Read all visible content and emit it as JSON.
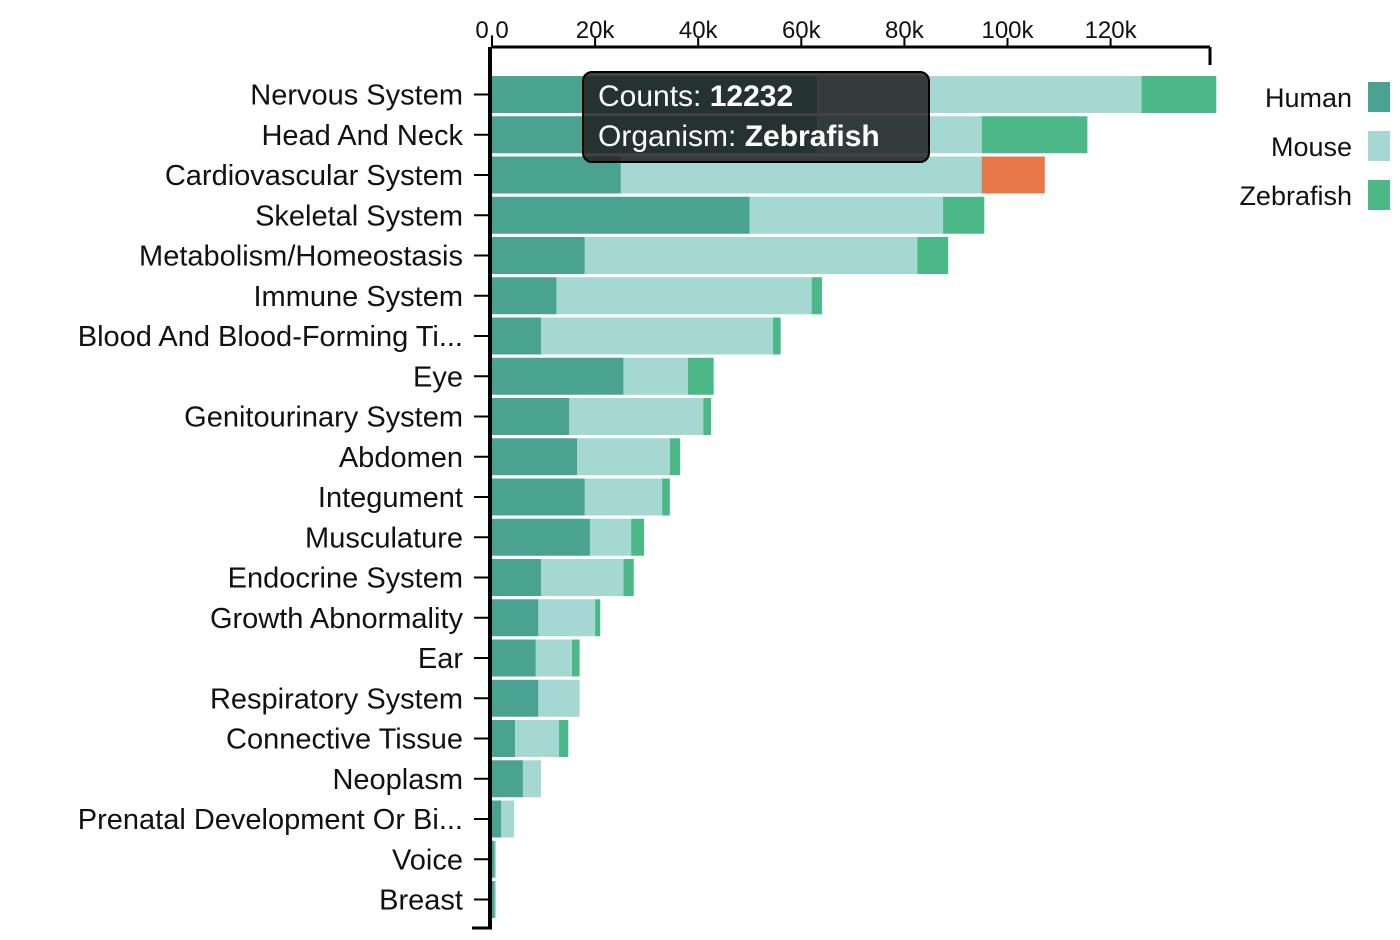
{
  "chart_data": {
    "type": "bar",
    "orientation": "horizontal",
    "stacked": true,
    "categories": [
      "Nervous System",
      "Head And Neck",
      "Cardiovascular System",
      "Skeletal System",
      "Metabolism/Homeostasis",
      "Immune System",
      "Blood And Blood-Forming Ti...",
      "Eye",
      "Genitourinary System",
      "Abdomen",
      "Integument",
      "Musculature",
      "Endocrine System",
      "Growth Abnormality",
      "Ear",
      "Respiratory System",
      "Connective Tissue",
      "Neoplasm",
      "Prenatal Development Or Bi...",
      "Voice",
      "Breast"
    ],
    "series": [
      {
        "name": "Human",
        "color": "#4aa291",
        "values": [
          63000,
          63000,
          25000,
          50000,
          18000,
          12500,
          9500,
          25500,
          15000,
          16500,
          18000,
          19000,
          9500,
          9000,
          8500,
          9000,
          4500,
          6000,
          1800,
          500,
          500
        ]
      },
      {
        "name": "Mouse",
        "color": "#a5d8d3",
        "values": [
          63000,
          32000,
          70000,
          37500,
          64500,
          49500,
          45000,
          12500,
          26000,
          18000,
          15000,
          8000,
          16000,
          11000,
          7000,
          8000,
          8500,
          3500,
          2500,
          300,
          300
        ]
      },
      {
        "name": "Zebrafish",
        "color": "#4cb887",
        "values": [
          14500,
          20500,
          12232,
          8000,
          6000,
          2000,
          1500,
          5000,
          1500,
          2000,
          1500,
          2500,
          2000,
          1000,
          1500,
          0,
          1800,
          0,
          0,
          0,
          0
        ]
      }
    ],
    "highlight": {
      "category": "Cardiovascular System",
      "series": "Zebrafish",
      "color": "#e8784a"
    },
    "xlim": [
      0,
      140000
    ],
    "xticks": [
      {
        "value": 0,
        "label": "0.0"
      },
      {
        "value": 20000,
        "label": "20k"
      },
      {
        "value": 40000,
        "label": "40k"
      },
      {
        "value": 60000,
        "label": "60k"
      },
      {
        "value": 80000,
        "label": "80k"
      },
      {
        "value": 100000,
        "label": "100k"
      },
      {
        "value": 120000,
        "label": "120k"
      }
    ],
    "x_axis_position": "top",
    "legend_position": "top-right",
    "grid": false,
    "title": "",
    "xlabel": "",
    "ylabel": ""
  },
  "tooltip": {
    "counts_label": "Counts: ",
    "counts_value": "12232",
    "organism_label": "Organism: ",
    "organism_value": "Zebrafish"
  }
}
